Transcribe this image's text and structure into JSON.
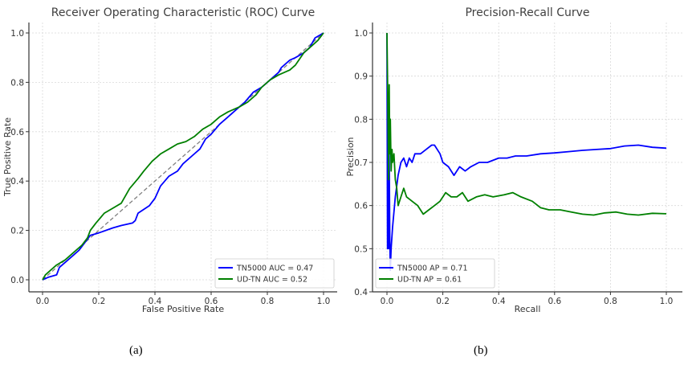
{
  "chart_data": [
    {
      "type": "line",
      "title": "Receiver Operating Characteristic (ROC) Curve",
      "xlabel": "False Positive Rate",
      "ylabel": "True Positive Rate",
      "xlim": [
        0,
        1
      ],
      "ylim": [
        0,
        1
      ],
      "xticks": [
        "0.0",
        "0.2",
        "0.4",
        "0.6",
        "0.8",
        "1.0"
      ],
      "yticks": [
        "0.0",
        "0.2",
        "0.4",
        "0.6",
        "0.8",
        "1.0"
      ],
      "grid": true,
      "legend_position": "bottom-right",
      "diagonal": {
        "style": "dashed",
        "color": "#808080",
        "x": [
          0,
          1
        ],
        "y": [
          0,
          1
        ]
      },
      "series": [
        {
          "name": "TN5000 AUC = 0.47",
          "color": "#0000ff",
          "x": [
            0,
            0.02,
            0.05,
            0.06,
            0.07,
            0.1,
            0.13,
            0.15,
            0.17,
            0.2,
            0.25,
            0.28,
            0.32,
            0.33,
            0.34,
            0.38,
            0.4,
            0.42,
            0.45,
            0.48,
            0.5,
            0.53,
            0.56,
            0.58,
            0.6,
            0.63,
            0.66,
            0.7,
            0.72,
            0.75,
            0.78,
            0.8,
            0.84,
            0.85,
            0.88,
            0.9,
            0.93,
            0.95,
            0.97,
            1.0
          ],
          "y": [
            0,
            0.01,
            0.02,
            0.05,
            0.06,
            0.09,
            0.12,
            0.15,
            0.18,
            0.19,
            0.21,
            0.22,
            0.23,
            0.24,
            0.27,
            0.3,
            0.33,
            0.38,
            0.42,
            0.44,
            0.47,
            0.5,
            0.53,
            0.57,
            0.59,
            0.63,
            0.66,
            0.7,
            0.72,
            0.76,
            0.78,
            0.8,
            0.84,
            0.86,
            0.89,
            0.9,
            0.92,
            0.94,
            0.98,
            1.0
          ]
        },
        {
          "name": "UD-TN AUC = 0.52",
          "color": "#008000",
          "x": [
            0,
            0.01,
            0.03,
            0.05,
            0.08,
            0.11,
            0.14,
            0.16,
            0.17,
            0.19,
            0.22,
            0.25,
            0.28,
            0.3,
            0.31,
            0.34,
            0.36,
            0.39,
            0.42,
            0.45,
            0.48,
            0.51,
            0.54,
            0.57,
            0.6,
            0.63,
            0.66,
            0.7,
            0.73,
            0.76,
            0.78,
            0.81,
            0.84,
            0.88,
            0.9,
            0.93,
            0.96,
            0.98,
            1.0
          ],
          "y": [
            0,
            0.02,
            0.04,
            0.06,
            0.08,
            0.11,
            0.14,
            0.17,
            0.2,
            0.23,
            0.27,
            0.29,
            0.31,
            0.35,
            0.37,
            0.41,
            0.44,
            0.48,
            0.51,
            0.53,
            0.55,
            0.56,
            0.58,
            0.61,
            0.63,
            0.66,
            0.68,
            0.7,
            0.72,
            0.75,
            0.78,
            0.81,
            0.83,
            0.85,
            0.87,
            0.92,
            0.95,
            0.97,
            1.0
          ]
        }
      ]
    },
    {
      "type": "line",
      "title": "Precision-Recall Curve",
      "xlabel": "Recall",
      "ylabel": "Precision",
      "xlim": [
        0,
        1
      ],
      "ylim": [
        0.4,
        1.0
      ],
      "xticks": [
        "0.0",
        "0.2",
        "0.4",
        "0.6",
        "0.8",
        "1.0"
      ],
      "yticks": [
        "0.4",
        "0.5",
        "0.6",
        "0.7",
        "0.8",
        "0.9",
        "1.0"
      ],
      "grid": true,
      "legend_position": "bottom-left",
      "series": [
        {
          "name": "TN5000 AP = 0.71",
          "color": "#0000ff",
          "x": [
            0.0,
            0.002,
            0.004,
            0.006,
            0.008,
            0.01,
            0.012,
            0.015,
            0.02,
            0.03,
            0.04,
            0.05,
            0.06,
            0.07,
            0.08,
            0.09,
            0.1,
            0.12,
            0.14,
            0.16,
            0.17,
            0.19,
            0.2,
            0.22,
            0.24,
            0.26,
            0.28,
            0.3,
            0.33,
            0.36,
            0.4,
            0.43,
            0.46,
            0.5,
            0.55,
            0.6,
            0.65,
            0.7,
            0.75,
            0.8,
            0.85,
            0.9,
            0.95,
            1.0
          ],
          "y": [
            1.0,
            0.5,
            0.68,
            0.5,
            0.72,
            0.53,
            0.45,
            0.5,
            0.55,
            0.62,
            0.67,
            0.7,
            0.71,
            0.69,
            0.71,
            0.7,
            0.72,
            0.72,
            0.73,
            0.74,
            0.74,
            0.72,
            0.7,
            0.69,
            0.67,
            0.69,
            0.68,
            0.69,
            0.7,
            0.7,
            0.71,
            0.71,
            0.715,
            0.715,
            0.72,
            0.722,
            0.725,
            0.728,
            0.73,
            0.732,
            0.738,
            0.74,
            0.735,
            0.733
          ]
        },
        {
          "name": "UD-TN AP = 0.61",
          "color": "#008000",
          "x": [
            0.0,
            0.003,
            0.006,
            0.008,
            0.01,
            0.012,
            0.015,
            0.018,
            0.02,
            0.025,
            0.03,
            0.035,
            0.04,
            0.05,
            0.06,
            0.07,
            0.09,
            0.11,
            0.13,
            0.15,
            0.17,
            0.19,
            0.21,
            0.23,
            0.25,
            0.27,
            0.29,
            0.32,
            0.35,
            0.38,
            0.42,
            0.45,
            0.48,
            0.52,
            0.55,
            0.58,
            0.62,
            0.66,
            0.7,
            0.74,
            0.78,
            0.82,
            0.86,
            0.9,
            0.95,
            1.0
          ],
          "y": [
            1.0,
            0.85,
            0.66,
            0.88,
            0.72,
            0.8,
            0.68,
            0.73,
            0.7,
            0.72,
            0.66,
            0.64,
            0.6,
            0.62,
            0.64,
            0.62,
            0.61,
            0.6,
            0.58,
            0.59,
            0.6,
            0.61,
            0.63,
            0.62,
            0.62,
            0.63,
            0.61,
            0.62,
            0.625,
            0.62,
            0.625,
            0.63,
            0.62,
            0.61,
            0.595,
            0.59,
            0.59,
            0.585,
            0.58,
            0.578,
            0.583,
            0.585,
            0.58,
            0.578,
            0.582,
            0.581
          ]
        }
      ]
    }
  ],
  "captions": [
    "(a)",
    "(b)"
  ]
}
